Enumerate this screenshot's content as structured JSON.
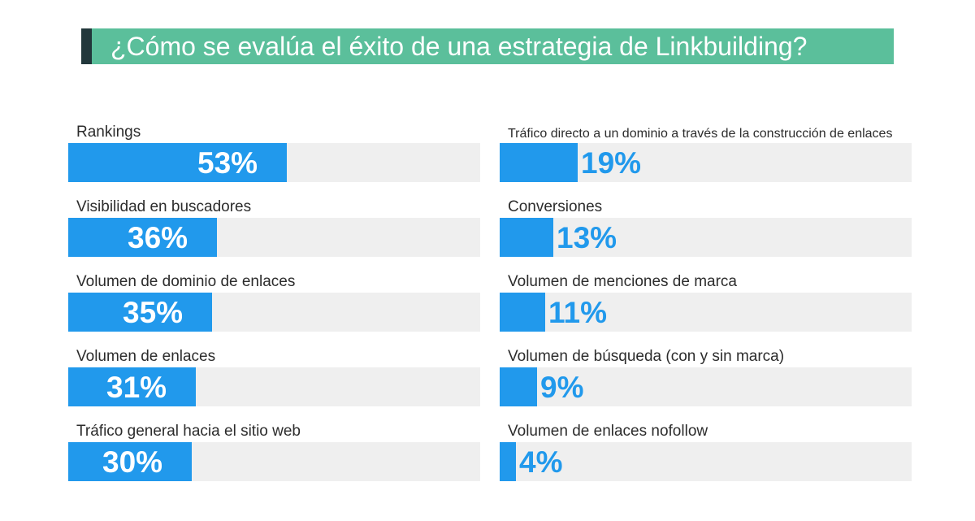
{
  "title": "¿Cómo se evalúa el éxito de una estrategia de Linkbuilding?",
  "colors": {
    "title_bg": "#5bbf9b",
    "title_accent": "#22373b",
    "bar": "#2199ec",
    "track": "#efefef",
    "value_inside": "#ffffff",
    "value_outside": "#2199ec"
  },
  "chart_data": {
    "type": "bar",
    "orientation": "horizontal",
    "title": "¿Cómo se evalúa el éxito de una estrategia de Linkbuilding?",
    "xlim": [
      0,
      100
    ],
    "unit": "%",
    "layout": "two-columns",
    "categories": [
      "Rankings",
      "Visibilidad en buscadores",
      "Volumen de dominio de enlaces",
      "Volumen de enlaces",
      "Tráfico general hacia el sitio web",
      "Tráfico directo a un dominio a través de la construcción de enlaces",
      "Conversiones",
      "Volumen de menciones de marca",
      "Volumen de búsqueda (con y sin marca)",
      "Volumen de enlaces nofollow"
    ],
    "values": [
      53,
      36,
      35,
      31,
      30,
      19,
      13,
      11,
      9,
      4
    ],
    "value_labels": [
      "53%",
      "36%",
      "35%",
      "31%",
      "30%",
      "19%",
      "13%",
      "11%",
      "9%",
      "4%"
    ]
  }
}
